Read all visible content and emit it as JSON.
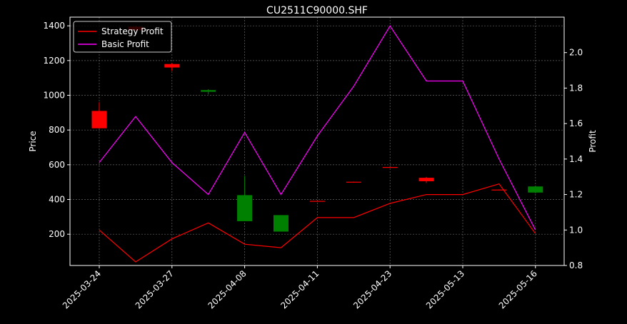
{
  "chart_data": {
    "type": "candlestick+line",
    "title": "CU2511C90000.SHF",
    "ylabel_left": "Price",
    "ylabel_right": "Profit",
    "ylim_left": [
      20,
      1450
    ],
    "ylim_right": [
      0.8,
      2.2
    ],
    "left_ticks": [
      200,
      400,
      600,
      800,
      1000,
      1200,
      1400
    ],
    "right_ticks": [
      0.8,
      1.0,
      1.2,
      1.4,
      1.6,
      1.8,
      2.0
    ],
    "x_labels": [
      "2025-03-24",
      "2025-03-27",
      "2025-04-08",
      "2025-04-11",
      "2025-04-23",
      "2025-05-13",
      "2025-05-16"
    ],
    "x_label_positions": [
      0,
      2,
      4,
      6,
      8,
      10,
      12
    ],
    "grid": true,
    "legend_position": "top-left",
    "candles": [
      {
        "i": 0,
        "open": 810,
        "close": 910,
        "high": 960,
        "low": 810,
        "up": true
      },
      {
        "i": 1,
        "open": 1375,
        "close": 1395,
        "high": 1400,
        "low": 1370,
        "up": true
      },
      {
        "i": 2,
        "open": 1160,
        "close": 1180,
        "high": 1185,
        "low": 1140,
        "up": true
      },
      {
        "i": 3,
        "open": 1030,
        "close": 1020,
        "high": 1035,
        "low": 1005,
        "up": false
      },
      {
        "i": 4,
        "open": 425,
        "close": 275,
        "high": 535,
        "low": 275,
        "up": false
      },
      {
        "i": 5,
        "open": 310,
        "close": 215,
        "high": 310,
        "low": 215,
        "up": false
      },
      {
        "i": 6,
        "open": 390,
        "close": 392,
        "high": 393,
        "low": 389,
        "up": true
      },
      {
        "i": 7,
        "open": 500,
        "close": 502,
        "high": 503,
        "low": 499,
        "up": true
      },
      {
        "i": 8,
        "open": 585,
        "close": 587,
        "high": 588,
        "low": 584,
        "up": true
      },
      {
        "i": 9,
        "open": 505,
        "close": 525,
        "high": 530,
        "low": 495,
        "up": true
      },
      {
        "i": 11,
        "open": 455,
        "close": 457,
        "high": 458,
        "low": 454,
        "up": true
      },
      {
        "i": 12,
        "open": 475,
        "close": 440,
        "high": 480,
        "low": 435,
        "up": false
      }
    ],
    "series": [
      {
        "name": "Strategy Profit",
        "color": "#ff0000",
        "x": [
          0,
          1,
          2,
          3,
          4,
          5,
          6,
          7,
          8,
          9,
          10,
          11,
          12
        ],
        "values": [
          1.0,
          0.82,
          0.95,
          1.04,
          0.92,
          0.9,
          1.07,
          1.07,
          1.15,
          1.2,
          1.2,
          1.26,
          0.98
        ]
      },
      {
        "name": "Basic Profit",
        "color": "#ff00ff",
        "x": [
          0,
          1,
          2,
          3,
          4,
          5,
          6,
          7,
          8,
          9,
          10,
          11,
          12
        ],
        "values": [
          1.38,
          1.64,
          1.38,
          1.2,
          1.55,
          1.2,
          1.53,
          1.81,
          2.15,
          1.84,
          1.84,
          1.4,
          1.0
        ]
      }
    ],
    "colors": {
      "up": "#ff0000",
      "down": "#008000",
      "grid": "#808080",
      "axes": "#ffffff"
    }
  }
}
